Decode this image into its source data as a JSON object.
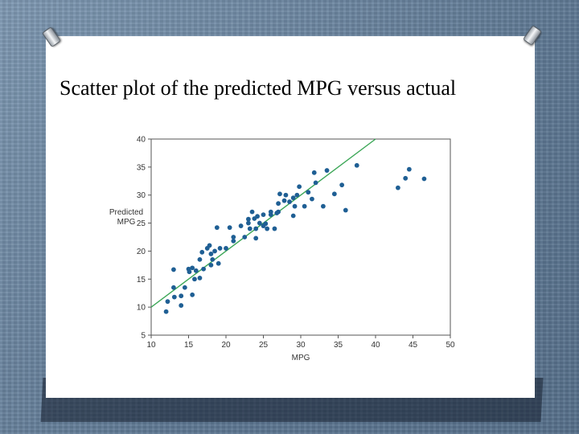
{
  "slide": {
    "title": "Scatter plot of the predicted MPG versus actual"
  },
  "colors": {
    "point": "#1f5f94",
    "line": "#3aa655",
    "axis": "#555555",
    "text": "#333333"
  },
  "chart_data": {
    "type": "scatter",
    "title": "",
    "xlabel": "MPG",
    "ylabel": "Predicted MPG",
    "xlim": [
      10,
      50
    ],
    "ylim": [
      5,
      40
    ],
    "xticks": [
      10,
      15,
      20,
      25,
      30,
      35,
      40,
      45,
      50
    ],
    "yticks": [
      5,
      10,
      15,
      20,
      25,
      30,
      35,
      40
    ],
    "grid": false,
    "reference_line": {
      "type": "y=x"
    },
    "series": [
      {
        "name": "",
        "points": [
          [
            12,
            9.2
          ],
          [
            12.2,
            11
          ],
          [
            13,
            13.5
          ],
          [
            13,
            16.7
          ],
          [
            13.1,
            11.8
          ],
          [
            14,
            10.3
          ],
          [
            14,
            12
          ],
          [
            14.5,
            13.5
          ],
          [
            15,
            16.8
          ],
          [
            15.1,
            16.3
          ],
          [
            15.5,
            17
          ],
          [
            15.5,
            12.2
          ],
          [
            15.8,
            15
          ],
          [
            16,
            16.5
          ],
          [
            16.5,
            18.5
          ],
          [
            16.5,
            15.2
          ],
          [
            16.8,
            19.8
          ],
          [
            17,
            16.8
          ],
          [
            17.5,
            20.5
          ],
          [
            17.8,
            21
          ],
          [
            18,
            19.5
          ],
          [
            18,
            17.5
          ],
          [
            18.2,
            18.5
          ],
          [
            18.5,
            20
          ],
          [
            18.8,
            24.2
          ],
          [
            19,
            17.8
          ],
          [
            19.2,
            20.5
          ],
          [
            20,
            20.5
          ],
          [
            20.5,
            24.2
          ],
          [
            21,
            22.5
          ],
          [
            21,
            21.8
          ],
          [
            22,
            24.5
          ],
          [
            22.5,
            22.5
          ],
          [
            23,
            25
          ],
          [
            23,
            25.7
          ],
          [
            23.2,
            24
          ],
          [
            23.5,
            27
          ],
          [
            23.8,
            25.8
          ],
          [
            24,
            22.3
          ],
          [
            24,
            24
          ],
          [
            24.2,
            26.2
          ],
          [
            24.5,
            25
          ],
          [
            25,
            26.5
          ],
          [
            25,
            24.5
          ],
          [
            25.3,
            24.9
          ],
          [
            25.5,
            24
          ],
          [
            26,
            26.5
          ],
          [
            26,
            27
          ],
          [
            26.5,
            24
          ],
          [
            26.8,
            26.8
          ],
          [
            27,
            27
          ],
          [
            27,
            28.5
          ],
          [
            27.2,
            30.2
          ],
          [
            27.8,
            29
          ],
          [
            28,
            30
          ],
          [
            28.5,
            28.8
          ],
          [
            29,
            26.3
          ],
          [
            29,
            29.5
          ],
          [
            29.2,
            28
          ],
          [
            29.5,
            30
          ],
          [
            29.8,
            31.5
          ],
          [
            30.5,
            28
          ],
          [
            31,
            30.5
          ],
          [
            31.5,
            29.3
          ],
          [
            31.8,
            34
          ],
          [
            32,
            32.2
          ],
          [
            33,
            28
          ],
          [
            33.5,
            34.4
          ],
          [
            34.5,
            30.2
          ],
          [
            35.5,
            31.8
          ],
          [
            36,
            27.3
          ],
          [
            37.5,
            35.3
          ],
          [
            43,
            31.3
          ],
          [
            44,
            33
          ],
          [
            44.5,
            34.6
          ],
          [
            46.5,
            32.9
          ]
        ]
      }
    ]
  }
}
